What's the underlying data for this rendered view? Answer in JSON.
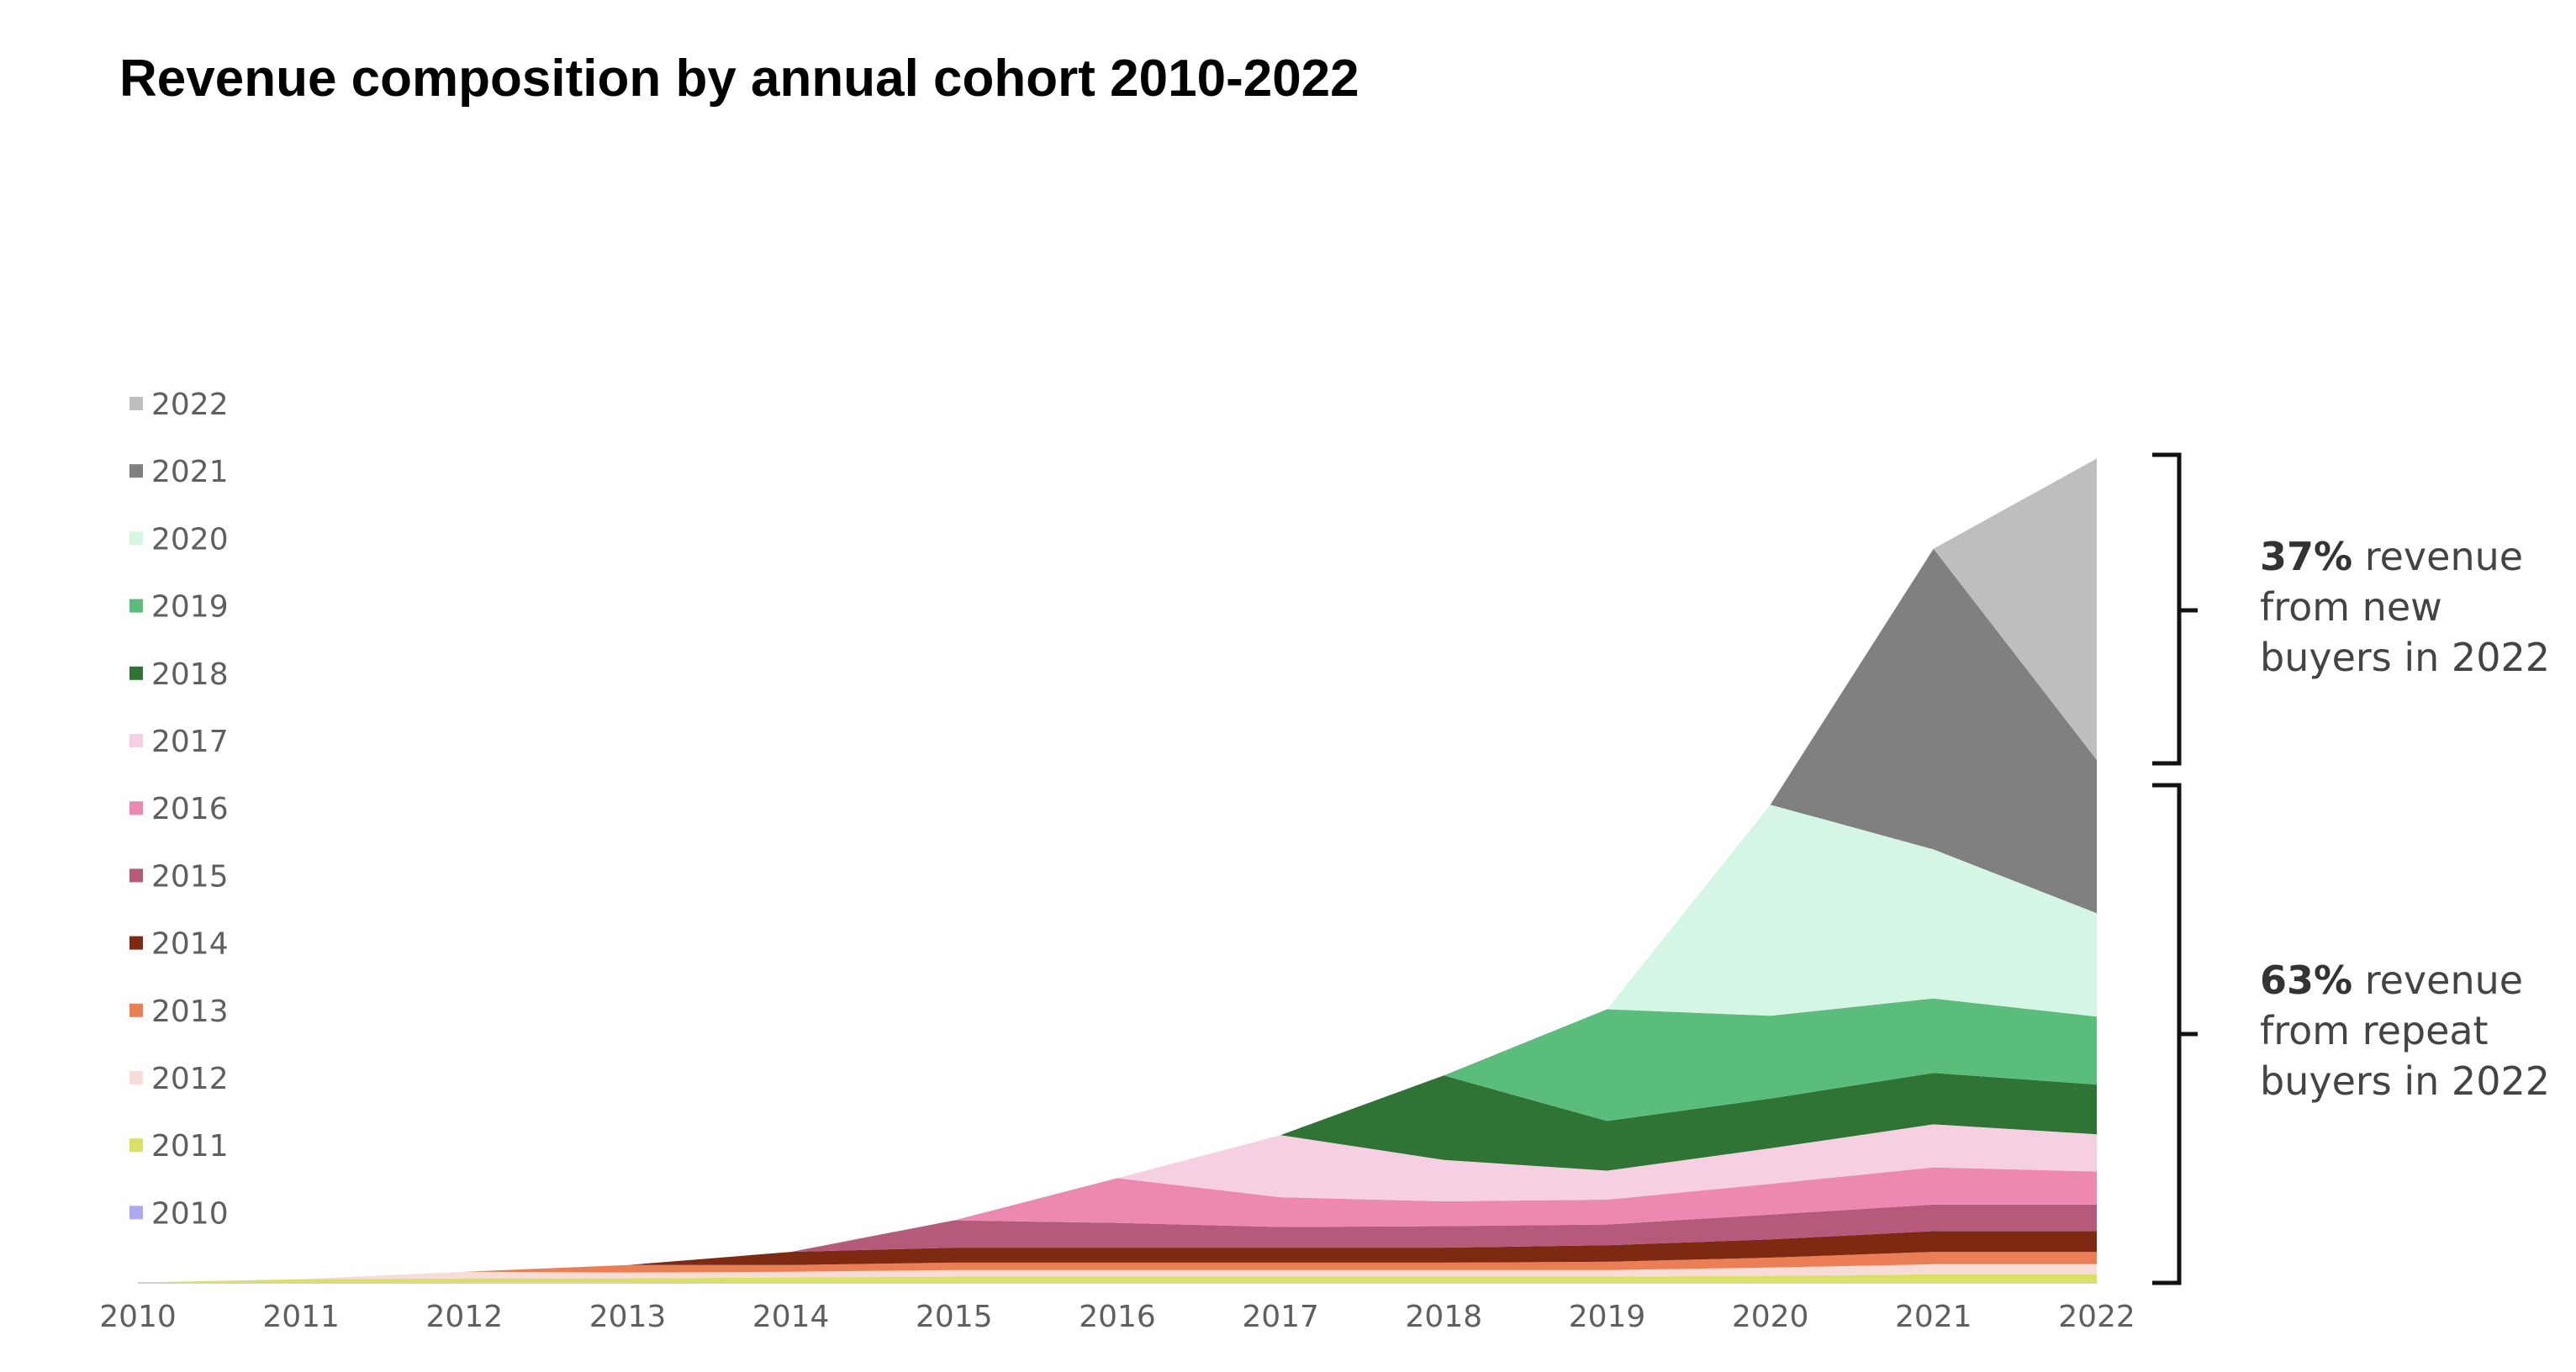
{
  "chart_data": {
    "type": "area",
    "stacked": true,
    "title": "Revenue composition by annual cohort 2010-2022",
    "xlabel": "",
    "ylabel": "",
    "grid": false,
    "legend_position": "left",
    "categories": [
      "2010",
      "2011",
      "2012",
      "2013",
      "2014",
      "2015",
      "2016",
      "2017",
      "2018",
      "2019",
      "2020",
      "2021",
      "2022"
    ],
    "ylim": [
      0,
      1000
    ],
    "series": [
      {
        "name": "2010",
        "color": "#aea9f0",
        "values": [
          0.5,
          0.5,
          0.5,
          0.5,
          0.5,
          0.5,
          0.5,
          0.5,
          0.5,
          0.5,
          0.5,
          0.5,
          0.5
        ]
      },
      {
        "name": "2011",
        "color": "#d9e065",
        "values": [
          0,
          4,
          5,
          5,
          6,
          7,
          7,
          7,
          7,
          7,
          8,
          10,
          10
        ]
      },
      {
        "name": "2012",
        "color": "#f7dcd8",
        "values": [
          0,
          0,
          8,
          7,
          7,
          8,
          8,
          8,
          8,
          8,
          10,
          12,
          12
        ]
      },
      {
        "name": "2013",
        "color": "#ec7e55",
        "values": [
          0,
          0,
          0,
          9,
          8,
          9,
          9,
          9,
          9,
          10,
          12,
          15,
          15
        ]
      },
      {
        "name": "2014",
        "color": "#7e2a12",
        "values": [
          0,
          0,
          0,
          0,
          16,
          18,
          18,
          18,
          18,
          20,
          22,
          25,
          25
        ]
      },
      {
        "name": "2015",
        "color": "#b55a7a",
        "values": [
          0,
          0,
          0,
          0,
          0,
          33,
          30,
          25,
          26,
          25,
          30,
          32,
          32
        ]
      },
      {
        "name": "2016",
        "color": "#ed88b1",
        "values": [
          0,
          0,
          0,
          0,
          0,
          0,
          54,
          36,
          30,
          30,
          37,
          45,
          40
        ]
      },
      {
        "name": "2017",
        "color": "#f6d0e2",
        "values": [
          0,
          0,
          0,
          0,
          0,
          0,
          0,
          75,
          50,
          35,
          43,
          52,
          45
        ]
      },
      {
        "name": "2018",
        "color": "#2f7335",
        "values": [
          0,
          0,
          0,
          0,
          0,
          0,
          0,
          0,
          102,
          60,
          60,
          62,
          60
        ]
      },
      {
        "name": "2019",
        "color": "#5bbd7c",
        "values": [
          0,
          0,
          0,
          0,
          0,
          0,
          0,
          0,
          0,
          135,
          100,
          90,
          82
        ]
      },
      {
        "name": "2020",
        "color": "#d5f5e5",
        "values": [
          0,
          0,
          0,
          0,
          0,
          0,
          0,
          0,
          0,
          0,
          255,
          180,
          125
        ]
      },
      {
        "name": "2021",
        "color": "#808080",
        "values": [
          0,
          0,
          0,
          0,
          0,
          0,
          0,
          0,
          0,
          0,
          0,
          363,
          185
        ]
      },
      {
        "name": "2022",
        "color": "#bebebe",
        "values": [
          0,
          0,
          0,
          0,
          0,
          0,
          0,
          0,
          0,
          0,
          0,
          0,
          364
        ]
      }
    ],
    "annotations": [
      {
        "bold": "37%",
        "text": " revenue from new buyers in 2022",
        "lines": [
          "revenue",
          "from new",
          "buyers in 2022"
        ]
      },
      {
        "bold": "63%",
        "text": " revenue from repeat buyers in 2022",
        "lines": [
          "revenue",
          "from repeat",
          "buyers in 2022"
        ]
      }
    ]
  }
}
